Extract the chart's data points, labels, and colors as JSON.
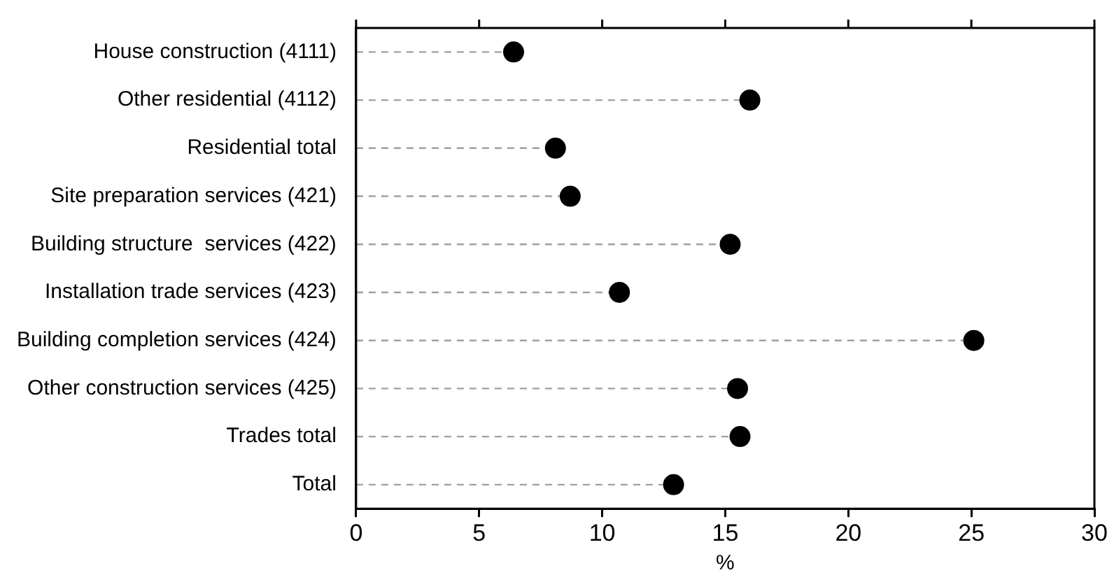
{
  "chart_data": {
    "type": "lollipop",
    "orientation": "horizontal",
    "xlabel": "%",
    "categories": [
      "House construction (4111)",
      "Other residential (4112)",
      "Residential total",
      "Site preparation services (421)",
      "Building structure  services (422)",
      "Installation trade services (423)",
      "Building completion services (424)",
      "Other construction services (425)",
      "Trades total",
      "Total"
    ],
    "values": [
      6.4,
      16.0,
      8.1,
      8.7,
      15.2,
      10.7,
      25.1,
      15.5,
      15.6,
      12.9
    ],
    "color": "#000000",
    "marker": "circle",
    "line_style": "dashed",
    "xlim": [
      0,
      30
    ],
    "xticks": [
      0,
      5,
      10,
      15,
      20,
      25,
      30
    ]
  }
}
